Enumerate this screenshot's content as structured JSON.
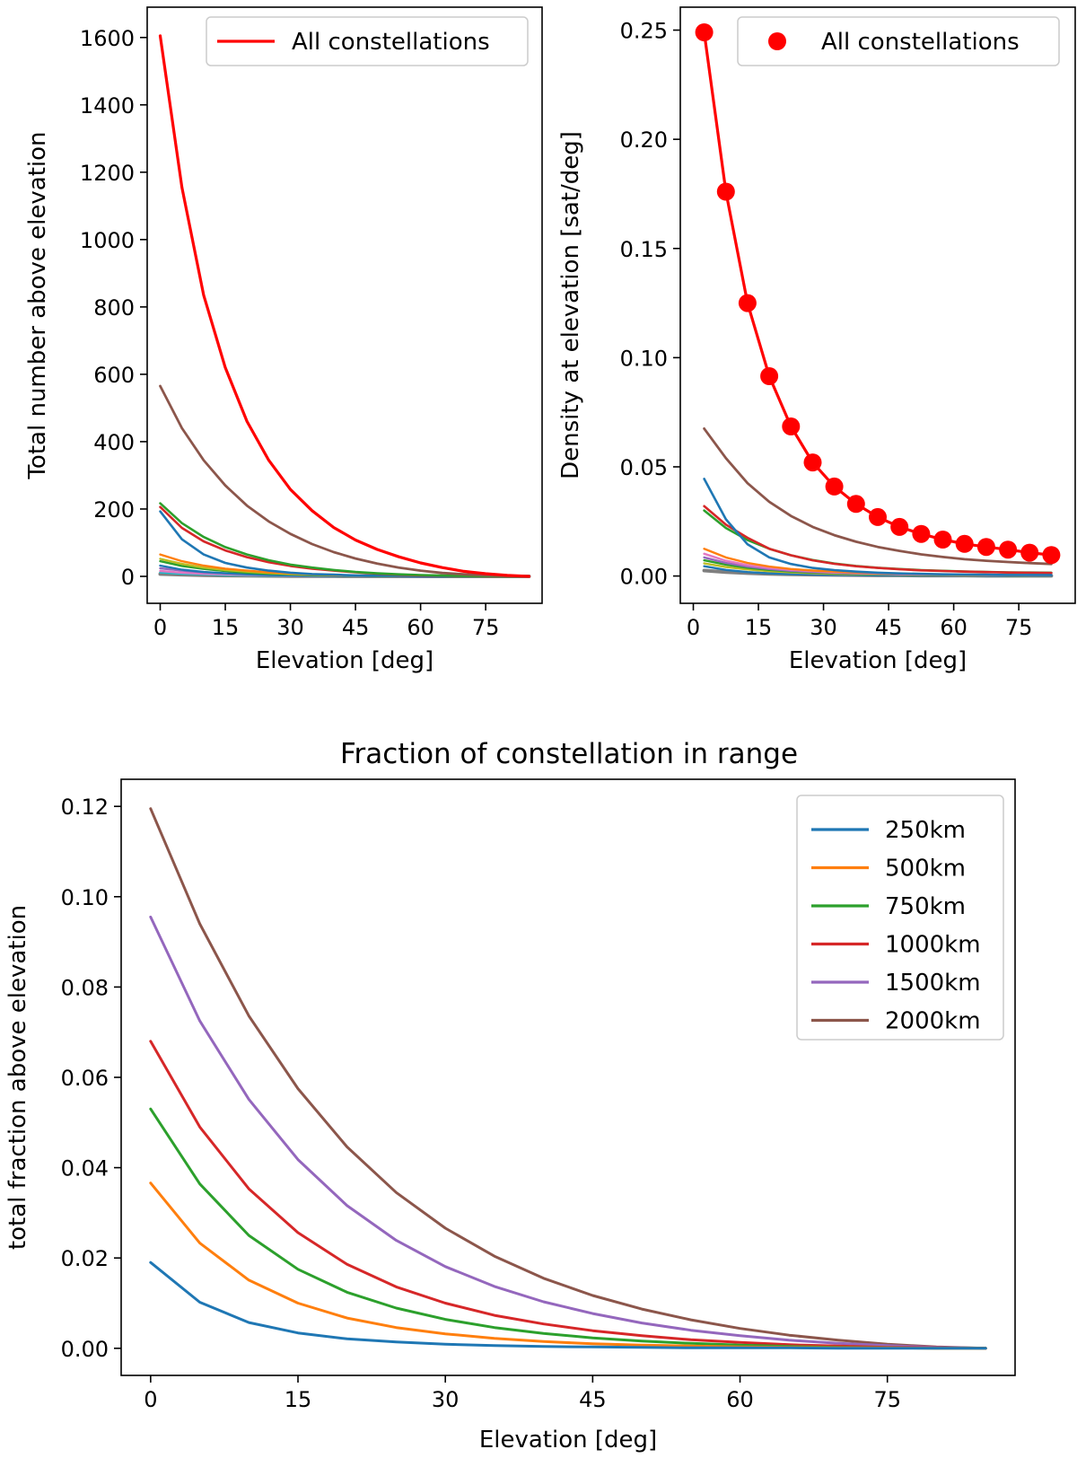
{
  "chart_data": [
    {
      "type": "line",
      "title": "",
      "xlabel": "Elevation [deg]",
      "ylabel": "Total number above elevation",
      "xlim": [
        -3,
        88
      ],
      "ylim": [
        -80,
        1690
      ],
      "xticks": [
        0,
        15,
        30,
        45,
        60,
        75
      ],
      "yticks": [
        0,
        200,
        400,
        600,
        800,
        1000,
        1200,
        1400,
        1600
      ],
      "grid": false,
      "legend_position": "top-right",
      "legend": [
        "All constellations"
      ],
      "x": [
        0,
        5,
        10,
        15,
        20,
        25,
        30,
        35,
        40,
        45,
        50,
        55,
        60,
        65,
        70,
        75,
        80,
        85
      ],
      "series": [
        {
          "name": "All constellations",
          "color": "#ff0000",
          "width": 3.2,
          "values": [
            1605,
            1155,
            835,
            620,
            460,
            345,
            258,
            195,
            145,
            108,
            80,
            58,
            40,
            26,
            15,
            8,
            3,
            0
          ]
        },
        {
          "name": "",
          "color": "#8c564b",
          "width": 2.8,
          "values": [
            565,
            440,
            345,
            270,
            210,
            163,
            126,
            96,
            72,
            53,
            38,
            26,
            17,
            10,
            6,
            3,
            1,
            0
          ]
        },
        {
          "name": "",
          "color": "#2ca02c",
          "width": 2.6,
          "values": [
            217,
            158,
            117,
            87,
            65,
            48,
            35,
            26,
            19,
            13,
            9,
            6,
            4,
            2.5,
            1.5,
            0.8,
            0.3,
            0
          ]
        },
        {
          "name": "",
          "color": "#d62728",
          "width": 2.6,
          "values": [
            206,
            144,
            104,
            77,
            57,
            42,
            31,
            23,
            17,
            12,
            8,
            5,
            3,
            2,
            1.2,
            0.6,
            0.2,
            0
          ]
        },
        {
          "name": "",
          "color": "#1f77b4",
          "width": 2.6,
          "values": [
            193,
            110,
            65,
            40,
            26,
            17,
            11,
            7,
            5,
            3,
            2,
            1.2,
            0.8,
            0.5,
            0.3,
            0.1,
            0,
            0
          ]
        },
        {
          "name": "",
          "color": "#ff7f0e",
          "width": 2.4,
          "values": [
            65,
            45,
            32,
            23,
            17,
            12,
            9,
            6,
            4,
            3,
            2,
            1.4,
            0.9,
            0.5,
            0.3,
            0.1,
            0,
            0
          ]
        },
        {
          "name": "",
          "color": "#bcbd22",
          "width": 2.4,
          "values": [
            52,
            37,
            26,
            19,
            14,
            10,
            7,
            5,
            3.5,
            2.5,
            1.7,
            1.1,
            0.7,
            0.4,
            0.2,
            0.1,
            0,
            0
          ]
        },
        {
          "name": "",
          "color": "#2ca02c",
          "width": 2.4,
          "values": [
            45,
            31,
            22,
            16,
            11,
            8,
            6,
            4,
            3,
            2,
            1.3,
            0.8,
            0.5,
            0.3,
            0.2,
            0.1,
            0,
            0
          ]
        },
        {
          "name": "",
          "color": "#1f77b4",
          "width": 2.4,
          "values": [
            32,
            20,
            13,
            9,
            6,
            4,
            3,
            2,
            1.4,
            1,
            0.6,
            0.4,
            0.2,
            0.1,
            0.1,
            0,
            0,
            0
          ]
        },
        {
          "name": "",
          "color": "#9467bd",
          "width": 2.4,
          "values": [
            24,
            17,
            12,
            9,
            6.5,
            4.7,
            3.4,
            2.4,
            1.7,
            1.2,
            0.8,
            0.5,
            0.3,
            0.2,
            0.1,
            0,
            0,
            0
          ]
        },
        {
          "name": "",
          "color": "#e377c2",
          "width": 2.4,
          "values": [
            16,
            11,
            8,
            6,
            4.3,
            3.1,
            2.2,
            1.6,
            1.1,
            0.8,
            0.5,
            0.3,
            0.2,
            0.1,
            0.1,
            0,
            0,
            0
          ]
        },
        {
          "name": "",
          "color": "#17becf",
          "width": 2.4,
          "values": [
            12,
            8,
            6,
            4,
            3,
            2.2,
            1.6,
            1.1,
            0.8,
            0.5,
            0.4,
            0.2,
            0.1,
            0.1,
            0,
            0,
            0,
            0
          ]
        },
        {
          "name": "",
          "color": "#7f7f7f",
          "width": 4,
          "values": [
            7,
            5,
            3.5,
            2.5,
            1.8,
            1.3,
            0.9,
            0.6,
            0.4,
            0.3,
            0.2,
            0.1,
            0.1,
            0,
            0,
            0,
            0,
            0
          ]
        }
      ]
    },
    {
      "type": "line",
      "title": "",
      "xlabel": "Elevation [deg]",
      "ylabel": "Density at elevation [sat/deg]",
      "xlim": [
        -3,
        88
      ],
      "ylim": [
        -0.0125,
        0.2605
      ],
      "xticks": [
        0,
        15,
        30,
        45,
        60,
        75
      ],
      "yticks": [
        0.0,
        0.05,
        0.1,
        0.15,
        0.2,
        0.25
      ],
      "ytick_labels": [
        "0.00",
        "0.05",
        "0.10",
        "0.15",
        "0.20",
        "0.25"
      ],
      "grid": false,
      "legend_position": "top-right",
      "legend": [
        "All constellations"
      ],
      "x": [
        2.5,
        7.5,
        12.5,
        17.5,
        22.5,
        27.5,
        32.5,
        37.5,
        42.5,
        47.5,
        52.5,
        57.5,
        62.5,
        67.5,
        72.5,
        77.5,
        82.5
      ],
      "series": [
        {
          "name": "All constellations",
          "color": "#ff0000",
          "width": 3.2,
          "marker": "circle",
          "values": [
            0.249,
            0.176,
            0.125,
            0.0915,
            0.0685,
            0.052,
            0.041,
            0.033,
            0.027,
            0.0225,
            0.0193,
            0.0167,
            0.0147,
            0.0133,
            0.0121,
            0.0107,
            0.0096
          ]
        },
        {
          "name": "",
          "color": "#8c564b",
          "width": 2.8,
          "values": [
            0.0675,
            0.054,
            0.0425,
            0.034,
            0.0275,
            0.0225,
            0.0187,
            0.0157,
            0.0133,
            0.0115,
            0.0099,
            0.0087,
            0.0077,
            0.007,
            0.0064,
            0.0059,
            0.0055
          ]
        },
        {
          "name": "",
          "color": "#1f77b4",
          "width": 2.6,
          "values": [
            0.0445,
            0.026,
            0.0145,
            0.0085,
            0.0055,
            0.0037,
            0.0027,
            0.002,
            0.0015,
            0.0012,
            0.001,
            0.0008,
            0.0007,
            0.0006,
            0.0005,
            0.0005,
            0.0004
          ]
        },
        {
          "name": "",
          "color": "#d62728",
          "width": 2.6,
          "values": [
            0.032,
            0.0235,
            0.0175,
            0.0125,
            0.0095,
            0.0072,
            0.0056,
            0.0045,
            0.0037,
            0.0031,
            0.0026,
            0.0023,
            0.002,
            0.0018,
            0.0016,
            0.0015,
            0.0014
          ]
        },
        {
          "name": "",
          "color": "#2ca02c",
          "width": 2.6,
          "values": [
            0.03,
            0.022,
            0.0165,
            0.0125,
            0.0095,
            0.0073,
            0.0057,
            0.0046,
            0.0038,
            0.0032,
            0.0027,
            0.0024,
            0.0021,
            0.0019,
            0.0017,
            0.0016,
            0.0015
          ]
        },
        {
          "name": "",
          "color": "#ff7f0e",
          "width": 2.4,
          "values": [
            0.0125,
            0.0085,
            0.006,
            0.0043,
            0.0032,
            0.0025,
            0.002,
            0.0016,
            0.0013,
            0.0011,
            0.0009,
            0.0008,
            0.0007,
            0.0006,
            0.0005,
            0.0005,
            0.0004
          ]
        },
        {
          "name": "",
          "color": "#e377c2",
          "width": 2.4,
          "values": [
            0.0102,
            0.007,
            0.005,
            0.0037,
            0.0028,
            0.0022,
            0.0017,
            0.0014,
            0.0011,
            0.0009,
            0.0008,
            0.0007,
            0.0006,
            0.0005,
            0.0004,
            0.0004,
            0.0003
          ]
        },
        {
          "name": "",
          "color": "#9467bd",
          "width": 2.4,
          "values": [
            0.0085,
            0.006,
            0.0043,
            0.0032,
            0.0024,
            0.0019,
            0.0015,
            0.0012,
            0.001,
            0.0008,
            0.0007,
            0.0006,
            0.0005,
            0.0004,
            0.0004,
            0.0003,
            0.0003
          ]
        },
        {
          "name": "",
          "color": "#2ca02c",
          "width": 2.4,
          "values": [
            0.0072,
            0.0052,
            0.0038,
            0.0028,
            0.0021,
            0.0016,
            0.0013,
            0.001,
            0.0008,
            0.0007,
            0.0006,
            0.0005,
            0.0004,
            0.0004,
            0.0003,
            0.0003,
            0.0002
          ]
        },
        {
          "name": "",
          "color": "#bcbd22",
          "width": 2.4,
          "values": [
            0.0058,
            0.0041,
            0.003,
            0.0022,
            0.0017,
            0.0013,
            0.001,
            0.0008,
            0.0007,
            0.0006,
            0.0005,
            0.0004,
            0.0003,
            0.0003,
            0.0003,
            0.0002,
            0.0002
          ]
        },
        {
          "name": "",
          "color": "#1f77b4",
          "width": 2.4,
          "values": [
            0.0045,
            0.0028,
            0.0018,
            0.0012,
            0.0009,
            0.0007,
            0.0005,
            0.0004,
            0.0003,
            0.0003,
            0.0002,
            0.0002,
            0.0002,
            0.0001,
            0.0001,
            0.0001,
            0.0001
          ]
        },
        {
          "name": "",
          "color": "#7f7f7f",
          "width": 4,
          "values": [
            0.0025,
            0.0018,
            0.0013,
            0.001,
            0.0008,
            0.0006,
            0.0005,
            0.0004,
            0.0003,
            0.0003,
            0.0002,
            0.0002,
            0.0002,
            0.0001,
            0.0001,
            0.0001,
            0.0001
          ]
        }
      ]
    },
    {
      "type": "line",
      "title": "Fraction of constellation in range",
      "xlabel": "Elevation [deg]",
      "ylabel": "total fraction above elevation",
      "xlim": [
        -3,
        88
      ],
      "ylim": [
        -0.006,
        0.126
      ],
      "xticks": [
        0,
        15,
        30,
        45,
        60,
        75
      ],
      "yticks": [
        0.0,
        0.02,
        0.04,
        0.06,
        0.08,
        0.1,
        0.12
      ],
      "ytick_labels": [
        "0.00",
        "0.02",
        "0.04",
        "0.06",
        "0.08",
        "0.10",
        "0.12"
      ],
      "grid": false,
      "legend_position": "top-right",
      "legend": [
        "250km",
        "500km",
        "750km",
        "1000km",
        "1500km",
        "2000km"
      ],
      "x": [
        0,
        5,
        10,
        15,
        20,
        25,
        30,
        35,
        40,
        45,
        50,
        55,
        60,
        65,
        70,
        75,
        80,
        85
      ],
      "series": [
        {
          "name": "250km",
          "color": "#1f77b4",
          "width": 3,
          "values": [
            0.019,
            0.0102,
            0.0057,
            0.0034,
            0.0021,
            0.0014,
            0.0009,
            0.0006,
            0.0004,
            0.0003,
            0.0002,
            0.0001,
            0.0001,
            0.0001,
            0,
            0,
            0,
            0
          ]
        },
        {
          "name": "500km",
          "color": "#ff7f0e",
          "width": 3,
          "values": [
            0.0366,
            0.0233,
            0.0151,
            0.01,
            0.0067,
            0.0046,
            0.0032,
            0.0022,
            0.0015,
            0.001,
            0.0007,
            0.0005,
            0.0003,
            0.0002,
            0.0001,
            0.0001,
            0,
            0
          ]
        },
        {
          "name": "750km",
          "color": "#2ca02c",
          "width": 3,
          "values": [
            0.053,
            0.0364,
            0.025,
            0.0175,
            0.0124,
            0.0089,
            0.0064,
            0.0046,
            0.0033,
            0.0023,
            0.0016,
            0.0011,
            0.0007,
            0.0004,
            0.0002,
            0.0001,
            0,
            0
          ]
        },
        {
          "name": "1000km",
          "color": "#d62728",
          "width": 3,
          "values": [
            0.068,
            0.049,
            0.0353,
            0.0256,
            0.0186,
            0.0136,
            0.01,
            0.0073,
            0.0054,
            0.0039,
            0.0028,
            0.0019,
            0.0013,
            0.0008,
            0.0005,
            0.0002,
            0.0001,
            0
          ]
        },
        {
          "name": "1500km",
          "color": "#9467bd",
          "width": 3,
          "values": [
            0.0955,
            0.0725,
            0.0551,
            0.0418,
            0.0316,
            0.0239,
            0.0181,
            0.0137,
            0.0103,
            0.0077,
            0.0056,
            0.004,
            0.0028,
            0.0018,
            0.0011,
            0.0006,
            0.0002,
            0
          ]
        },
        {
          "name": "2000km",
          "color": "#8c564b",
          "width": 3,
          "values": [
            0.1195,
            0.094,
            0.0736,
            0.0575,
            0.0446,
            0.0345,
            0.0266,
            0.0204,
            0.0155,
            0.0117,
            0.0087,
            0.0063,
            0.0044,
            0.0029,
            0.0018,
            0.0009,
            0.0003,
            0
          ]
        }
      ]
    }
  ]
}
